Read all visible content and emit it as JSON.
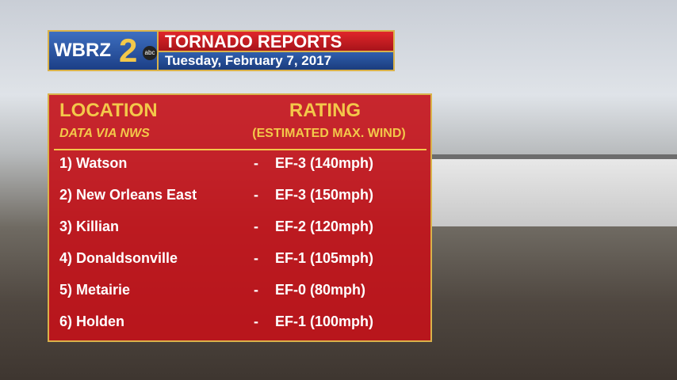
{
  "header": {
    "logo": "WBRZ",
    "channel": "2",
    "network": "abc",
    "title": "TORNADO REPORTS",
    "date": "Tuesday, February 7, 2017"
  },
  "table": {
    "columns": [
      {
        "title": "LOCATION",
        "subtitle": "DATA VIA NWS"
      },
      {
        "title": "RATING",
        "subtitle": "(ESTIMATED MAX. WIND)"
      }
    ],
    "rows": [
      [
        "1) Watson",
        "-",
        "EF-3 (140mph)"
      ],
      [
        "2) New Orleans East",
        "-",
        "EF-3 (150mph)"
      ],
      [
        "3) Killian",
        "-",
        "EF-2 (120mph)"
      ],
      [
        "4) Donaldsonville",
        "-",
        "EF-1 (105mph)"
      ],
      [
        "5) Metairie",
        "-",
        "EF-0 (80mph)"
      ],
      [
        "6) Holden",
        "-",
        "EF-1 (100mph)"
      ]
    ]
  }
}
